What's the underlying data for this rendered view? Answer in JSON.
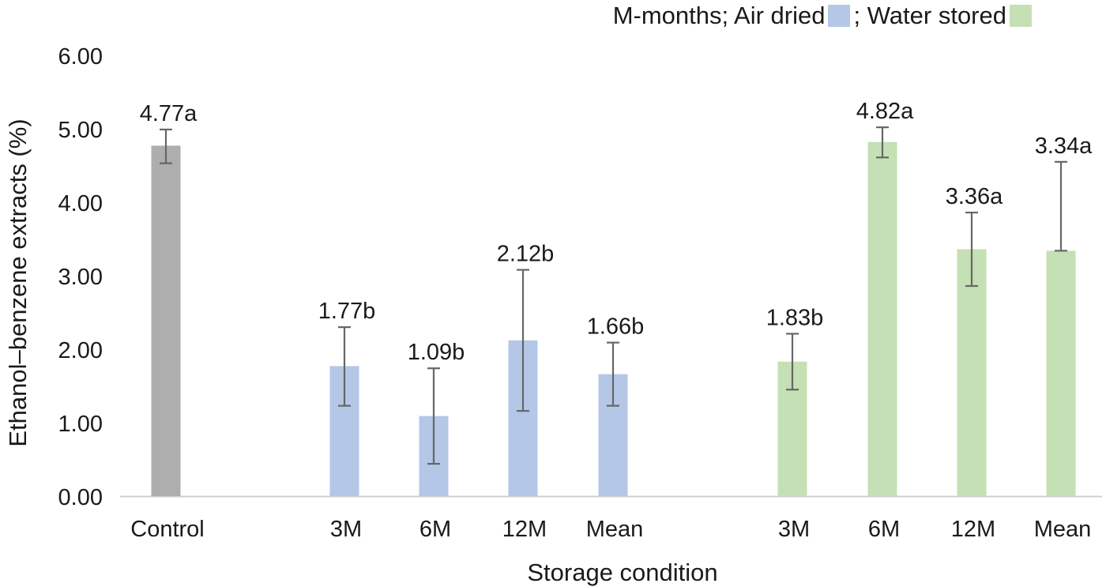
{
  "chart_data": {
    "type": "bar",
    "title": "",
    "xlabel": "Storage condition",
    "ylabel": "Ethanol–benzene extracts  (%)",
    "ylim": [
      0,
      6
    ],
    "yticks": [
      "0.00",
      "1.00",
      "2.00",
      "3.00",
      "4.00",
      "5.00",
      "6.00"
    ],
    "legend": {
      "prefix": "M-months; Air dried",
      "separator": "; Water stored",
      "air_color": "#b4c7e7",
      "water_color": "#c5e0b4"
    },
    "bars": [
      {
        "category": "Control",
        "group": "control",
        "value": 4.77,
        "err_low": 4.53,
        "err_high": 4.99,
        "label": "4.77a",
        "color": "#aeaeae"
      },
      {
        "category": "3M",
        "group": "air",
        "value": 1.77,
        "err_low": 1.23,
        "err_high": 2.3,
        "label": "1.77b",
        "color": "#b4c7e7"
      },
      {
        "category": "6M",
        "group": "air",
        "value": 1.09,
        "err_low": 0.44,
        "err_high": 1.74,
        "label": "1.09b",
        "color": "#b4c7e7"
      },
      {
        "category": "12M",
        "group": "air",
        "value": 2.12,
        "err_low": 1.16,
        "err_high": 3.08,
        "label": "2.12b",
        "color": "#b4c7e7"
      },
      {
        "category": "Mean",
        "group": "air",
        "value": 1.66,
        "err_low": 1.23,
        "err_high": 2.09,
        "label": "1.66b",
        "color": "#b4c7e7"
      },
      {
        "category": "3M",
        "group": "water",
        "value": 1.83,
        "err_low": 1.45,
        "err_high": 2.21,
        "label": "1.83b",
        "color": "#c5e0b4"
      },
      {
        "category": "6M",
        "group": "water",
        "value": 4.82,
        "err_low": 4.61,
        "err_high": 5.02,
        "label": "4.82a",
        "color": "#c5e0b4"
      },
      {
        "category": "12M",
        "group": "water",
        "value": 3.36,
        "err_low": 2.86,
        "err_high": 3.86,
        "label": "3.36a",
        "color": "#c5e0b4"
      },
      {
        "category": "Mean",
        "group": "water",
        "value": 3.34,
        "err_low": 3.34,
        "err_high": 4.55,
        "label": "3.34a",
        "color": "#c5e0b4"
      }
    ]
  }
}
